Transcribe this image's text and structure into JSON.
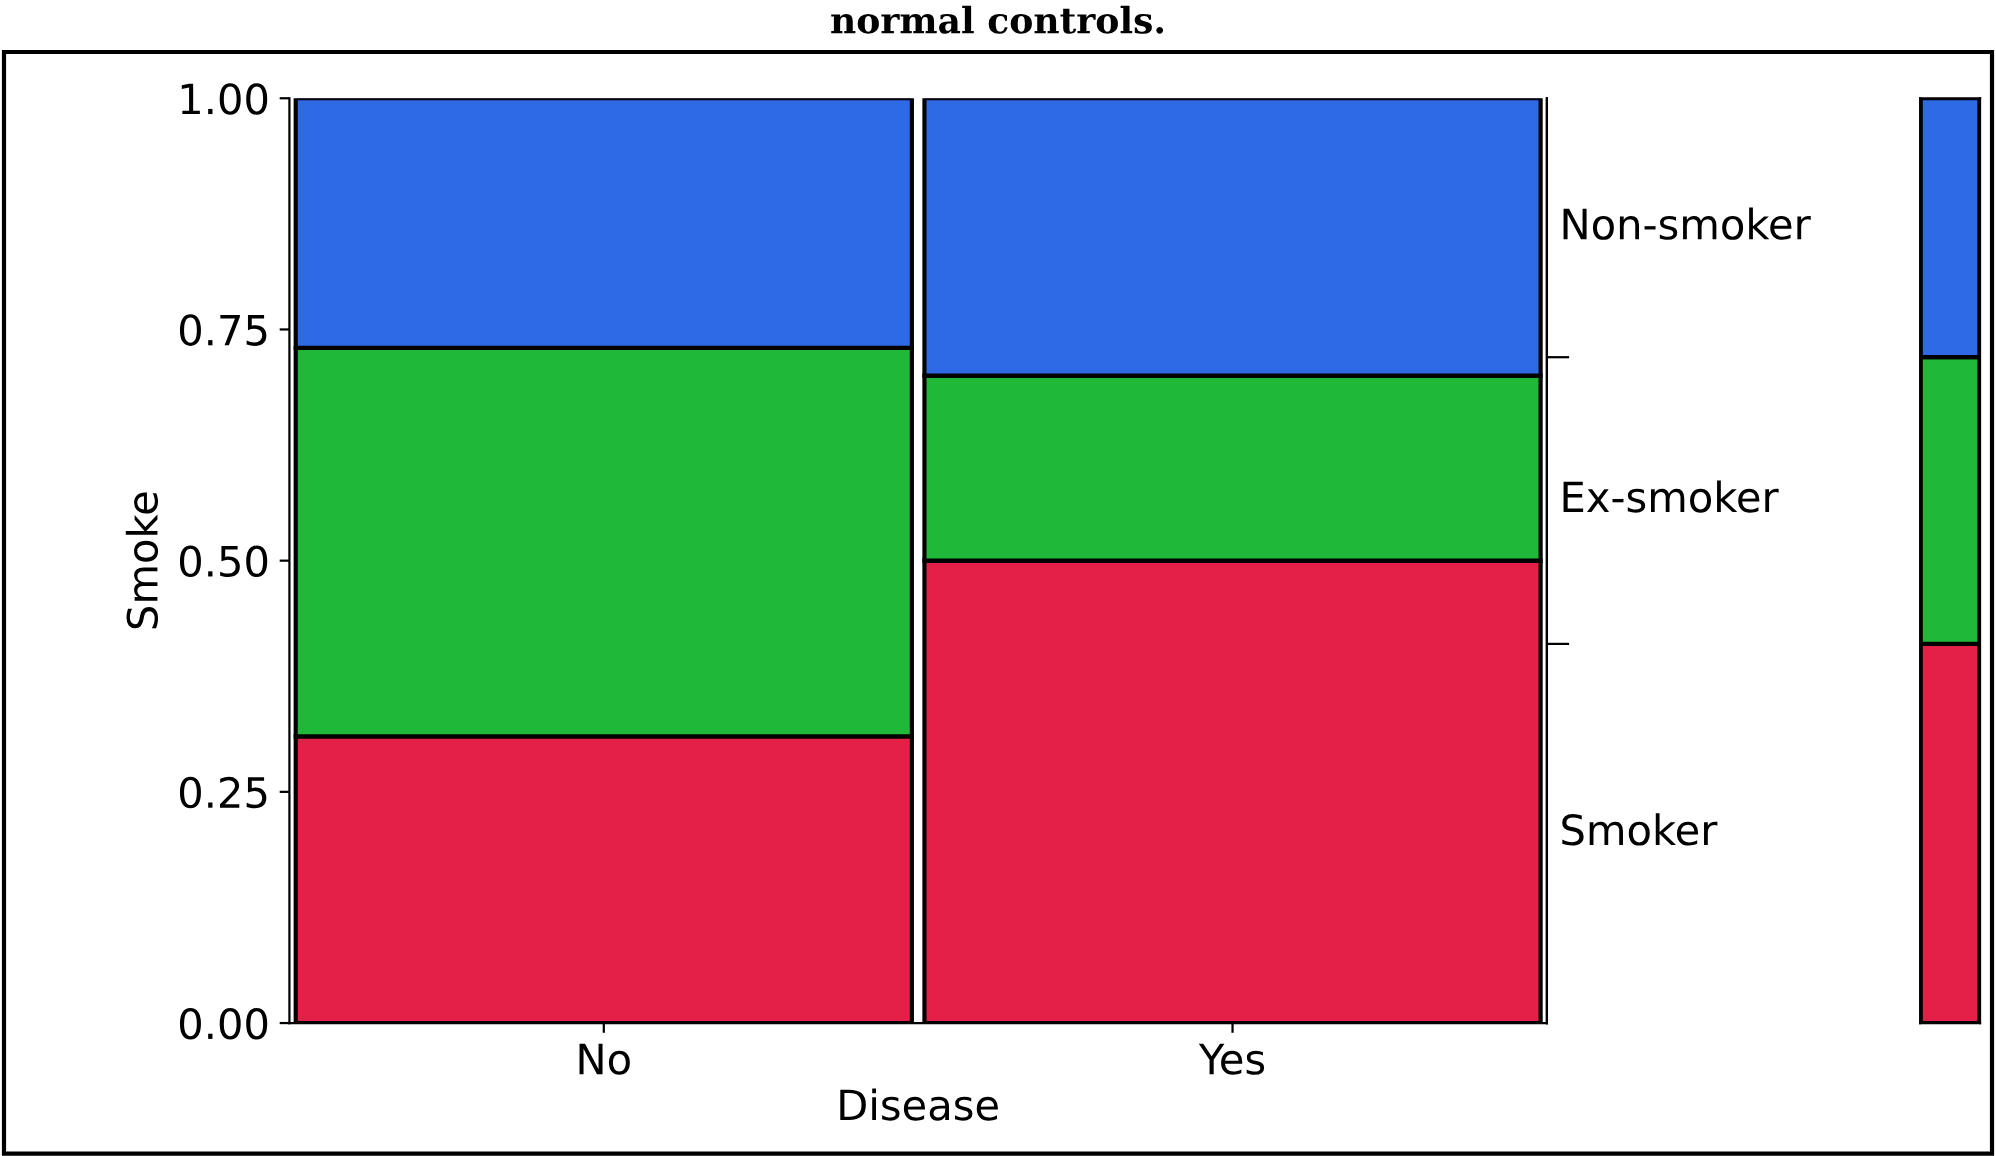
{
  "chart_data": [
    {
      "type": "bar",
      "stacked": true,
      "title": "normal controls.",
      "xlabel": "Disease",
      "ylabel": "Smoke",
      "categories": [
        "No",
        "Yes"
      ],
      "series": [
        {
          "name": "Smoker",
          "color": "#e52048",
          "values": [
            0.31,
            0.5
          ]
        },
        {
          "name": "Ex-smoker",
          "color": "#20b838",
          "values": [
            0.42,
            0.2
          ]
        },
        {
          "name": "Non-smoker",
          "color": "#2e6ae6",
          "values": [
            0.27,
            0.3
          ]
        }
      ],
      "ylim": [
        0,
        1
      ],
      "yticks": [
        {
          "value": 0,
          "label": "0.00"
        },
        {
          "value": 0.25,
          "label": "0.25"
        },
        {
          "value": 0.5,
          "label": "0.50"
        },
        {
          "value": 0.75,
          "label": "0.75"
        },
        {
          "value": 1,
          "label": "1.00"
        }
      ],
      "grid": false,
      "legend": false
    },
    {
      "type": "bar",
      "stacked": true,
      "categories": [
        null
      ],
      "series": [
        {
          "color": "#e52048",
          "values": [
            0.41
          ]
        },
        {
          "color": "#20b838",
          "values": [
            0.31
          ]
        },
        {
          "color": "#2e6ae6",
          "values": [
            0.28
          ]
        }
      ],
      "ylim": [
        0,
        1
      ],
      "tick_labels": false,
      "grid": false,
      "legend": false
    }
  ]
}
